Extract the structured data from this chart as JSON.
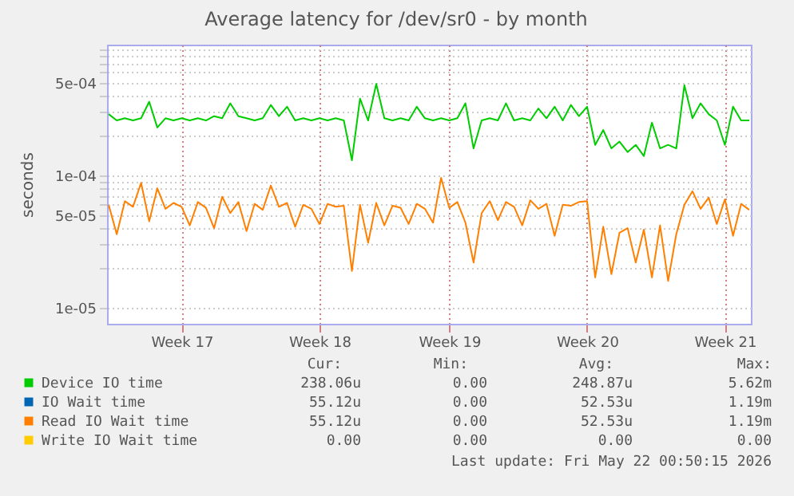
{
  "chart_data": {
    "type": "line",
    "title": "Average latency for /dev/sr0 - by month",
    "ylabel": "seconds",
    "log": "y",
    "grid": true,
    "legend": "bottom",
    "ylim": [
      7.6e-06,
      0.00097
    ],
    "yticks": [
      {
        "value": 1e-05,
        "label": "1e-05"
      },
      {
        "value": 2e-05,
        "label": null
      },
      {
        "value": 3e-05,
        "label": null
      },
      {
        "value": 4e-05,
        "label": null
      },
      {
        "value": 5e-05,
        "label": "5e-05"
      },
      {
        "value": 6e-05,
        "label": null
      },
      {
        "value": 7e-05,
        "label": null
      },
      {
        "value": 8e-05,
        "label": null
      },
      {
        "value": 9e-05,
        "label": null
      },
      {
        "value": 0.0001,
        "label": "1e-04"
      },
      {
        "value": 0.0002,
        "label": null
      },
      {
        "value": 0.0003,
        "label": null
      },
      {
        "value": 0.0004,
        "label": null
      },
      {
        "value": 0.0005,
        "label": "5e-04"
      },
      {
        "value": 0.0006,
        "label": null
      },
      {
        "value": 0.0007,
        "label": null
      },
      {
        "value": 0.0008,
        "label": null
      },
      {
        "value": 0.0009,
        "label": null
      }
    ],
    "categories": [
      null,
      null,
      null,
      null,
      null,
      null,
      null,
      null,
      null,
      "Week 17",
      null,
      null,
      null,
      null,
      null,
      null,
      null,
      null,
      null,
      null,
      null,
      null,
      null,
      null,
      null,
      null,
      "Week 18",
      null,
      null,
      null,
      null,
      null,
      null,
      null,
      null,
      null,
      null,
      null,
      null,
      null,
      null,
      null,
      "Week 19",
      null,
      null,
      null,
      null,
      null,
      null,
      null,
      null,
      null,
      null,
      null,
      null,
      null,
      null,
      null,
      null,
      "Week 20",
      null,
      null,
      null,
      null,
      null,
      null,
      null,
      null,
      null,
      null,
      null,
      null,
      null,
      null,
      null,
      null,
      "Week 21",
      null,
      null,
      null
    ],
    "series": [
      {
        "name": "Device IO time",
        "color": "#00cc00",
        "values": [
          0.00029,
          0.00026,
          0.00027,
          0.00026,
          0.00027,
          0.00036,
          0.00023,
          0.00027,
          0.00026,
          0.00027,
          0.00026,
          0.00027,
          0.00026,
          0.00028,
          0.00027,
          0.00035,
          0.00028,
          0.00027,
          0.00026,
          0.00027,
          0.00034,
          0.00028,
          0.00033,
          0.00026,
          0.00027,
          0.00026,
          0.00027,
          0.00026,
          0.00027,
          0.00026,
          0.00013,
          0.00038,
          0.00026,
          0.00049,
          0.00027,
          0.00026,
          0.00027,
          0.00026,
          0.00033,
          0.00027,
          0.00026,
          0.00027,
          0.00026,
          0.00027,
          0.00035,
          0.00016,
          0.00026,
          0.00027,
          0.00026,
          0.00035,
          0.00026,
          0.00027,
          0.00026,
          0.00032,
          0.00027,
          0.00033,
          0.00026,
          0.00034,
          0.00028,
          0.00033,
          0.00017,
          0.00022,
          0.00016,
          0.00018,
          0.00015,
          0.00017,
          0.00014,
          0.00025,
          0.00016,
          0.00017,
          0.00016,
          0.00048,
          0.00027,
          0.00035,
          0.00029,
          0.00026,
          0.00017,
          0.00033,
          0.00026,
          0.00026
        ]
      },
      {
        "name": "IO Wait time",
        "color": "#0066b3",
        "values": [
          null,
          null,
          null,
          null,
          null,
          null,
          null,
          null,
          null,
          null,
          null,
          null,
          null,
          null,
          null,
          null,
          null,
          null,
          null,
          null,
          null,
          null,
          null,
          null,
          null,
          null,
          null,
          null,
          null,
          null,
          null,
          null,
          null,
          null,
          null,
          null,
          null,
          null,
          null,
          null,
          null,
          null,
          null,
          null,
          null,
          null,
          null,
          null,
          null,
          null,
          null,
          null,
          null,
          null,
          null,
          null,
          null,
          null,
          null,
          null,
          null,
          null,
          null,
          null,
          null,
          null,
          null,
          null,
          null,
          null,
          null,
          null,
          null,
          null,
          null,
          null,
          null,
          null,
          null,
          null
        ]
      },
      {
        "name": "Read IO Wait time",
        "color": "#ff8000",
        "values": [
          6e-05,
          3.6e-05,
          6.4e-05,
          5.8e-05,
          8.8e-05,
          4.5e-05,
          8e-05,
          5.6e-05,
          6.2e-05,
          5.8e-05,
          4.2e-05,
          6.3e-05,
          5.7e-05,
          4e-05,
          6.9e-05,
          5.2e-05,
          6.3e-05,
          3.8e-05,
          6.1e-05,
          5.5e-05,
          8.4e-05,
          5.8e-05,
          6.2e-05,
          4.1e-05,
          6e-05,
          5.6e-05,
          4.3e-05,
          6.1e-05,
          5.8e-05,
          5.9e-05,
          1.9e-05,
          6e-05,
          3.1e-05,
          6.2e-05,
          4.2e-05,
          5.9e-05,
          5.7e-05,
          4.3e-05,
          6.1e-05,
          5.6e-05,
          4.4e-05,
          9.6e-05,
          5.7e-05,
          6.3e-05,
          4.4e-05,
          2.2e-05,
          5.2e-05,
          6.4e-05,
          4.6e-05,
          6.3e-05,
          5.8e-05,
          4.2e-05,
          6.5e-05,
          5.6e-05,
          6.1e-05,
          3.5e-05,
          6e-05,
          5.9e-05,
          6.3e-05,
          6.4e-05,
          1.7e-05,
          4.1e-05,
          1.8e-05,
          3.7e-05,
          4e-05,
          2.2e-05,
          3.9e-05,
          1.7e-05,
          4.2e-05,
          1.6e-05,
          3.6e-05,
          6e-05,
          7.6e-05,
          5.6e-05,
          6.8e-05,
          4.3e-05,
          6.6e-05,
          3.5e-05,
          6.1e-05,
          5.5e-05
        ]
      },
      {
        "name": "Write IO Wait time",
        "color": "#ffcc00",
        "values": [
          null,
          null,
          null,
          null,
          null,
          null,
          null,
          null,
          null,
          null,
          null,
          null,
          null,
          null,
          null,
          null,
          null,
          null,
          null,
          null,
          null,
          null,
          null,
          null,
          null,
          null,
          null,
          null,
          null,
          null,
          null,
          null,
          null,
          null,
          null,
          null,
          null,
          null,
          null,
          null,
          null,
          null,
          null,
          null,
          null,
          null,
          null,
          null,
          null,
          null,
          null,
          null,
          null,
          null,
          null,
          null,
          null,
          null,
          null,
          null,
          null,
          null,
          null,
          null,
          null,
          null,
          null,
          null,
          null,
          null,
          null,
          null,
          null,
          null,
          null,
          null,
          null,
          null,
          null,
          null
        ]
      }
    ],
    "annotations": [
      "Cur:",
      "Min:",
      "Avg:",
      "Max:",
      "238.06u",
      "0.00",
      "248.87u",
      "5.62m",
      "55.12u",
      "0.00",
      "52.53u",
      "1.19m",
      "55.12u",
      "0.00",
      "52.53u",
      "1.19m",
      "0.00",
      "0.00",
      "0.00",
      "0.00",
      "Last update: Fri May 22 00:50:15 2026"
    ]
  }
}
